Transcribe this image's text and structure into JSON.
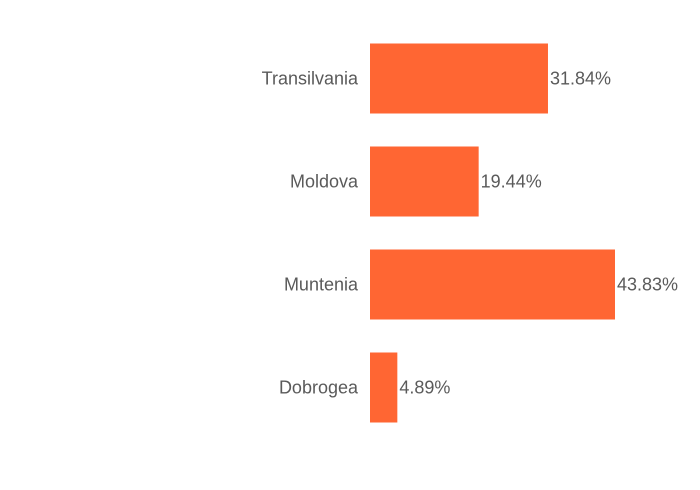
{
  "chart_data": {
    "type": "bar",
    "orientation": "horizontal",
    "categories": [
      "Transilvania",
      "Moldova",
      "Muntenia",
      "Dobrogea"
    ],
    "values": [
      31.84,
      19.44,
      43.83,
      4.89
    ],
    "value_labels": [
      "31.84%",
      "19.44%",
      "43.83%",
      "4.89%"
    ],
    "unit": "%",
    "title": "",
    "xlabel": "",
    "ylabel": "",
    "xlim": [
      0,
      43.83
    ],
    "grid": false,
    "legend": "none",
    "bar_color": "#ff6633",
    "text_color": "#5a5a5a",
    "background": "#ffffff"
  }
}
